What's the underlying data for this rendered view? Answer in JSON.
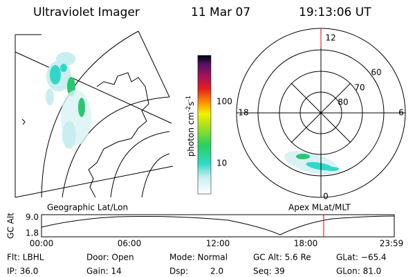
{
  "header": {
    "instrument": "Ultraviolet Imager",
    "date": "11 Mar 07",
    "time": "19:13:06 UT"
  },
  "colorbar": {
    "label": "photon cm",
    "exp1": "-2",
    "unit2": "s",
    "exp2": "-1",
    "ticks": [
      "100",
      "10"
    ]
  },
  "polar": {
    "mlt": {
      "top": "12",
      "left": "18",
      "right": "6",
      "bottom": "0"
    },
    "mlat": [
      "80",
      "70",
      "60"
    ]
  },
  "panels": {
    "left": "Geographic Lat/Lon",
    "right": "Apex MLat/MLT"
  },
  "altitude": {
    "label": "GC Alt",
    "ymax": "9.0",
    "ymin": "1.8",
    "times": [
      "00:00",
      "06:00",
      "12:00",
      "18:00",
      "23:59"
    ]
  },
  "footer": {
    "rows": [
      [
        "Flt: LBHL",
        "Door: Open",
        "Mode: Normal",
        "GC Alt: 5.6 Re",
        "GLat: −65.4"
      ],
      [
        "IP: 36.0",
        "Gain: 14",
        "Dsp:",
        "Seq: 39",
        "GLon: 81.0"
      ]
    ],
    "dsp_value": "2.0"
  }
}
